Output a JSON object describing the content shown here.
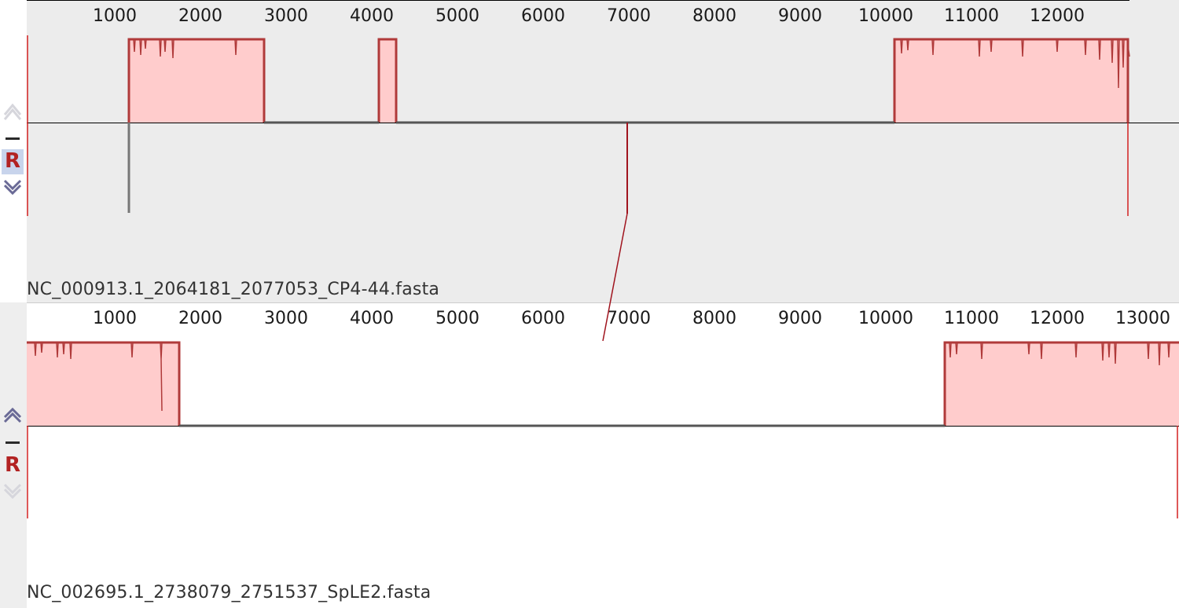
{
  "tracks": [
    {
      "name": "NC_000913.1_2064181_2077053_CP4-44.fasta",
      "ruler_ticks": [
        "1000",
        "2000",
        "3000",
        "4000",
        "5000",
        "6000",
        "7000",
        "8000",
        "9000",
        "10000",
        "11000",
        "12000"
      ],
      "controls": {
        "up": "shift-up-icon",
        "minus": "minus-icon",
        "reverse": "R",
        "down": "shift-down-icon",
        "reverse_selected": true
      },
      "background": "#ececec"
    },
    {
      "name": "NC_002695.1_2738079_2751537_SpLE2.fasta",
      "ruler_ticks": [
        "1000",
        "2000",
        "3000",
        "4000",
        "5000",
        "6000",
        "7000",
        "8000",
        "9000",
        "10000",
        "11000",
        "12000",
        "13000"
      ],
      "controls": {
        "up": "shift-up-icon",
        "minus": "minus-icon",
        "reverse": "R",
        "down": "shift-down-icon",
        "reverse_selected": false
      },
      "background": "#ffffff"
    }
  ],
  "colors": {
    "block_fill": "#ffcccc",
    "block_outline": "#b03a3a",
    "connector": "#a0141e",
    "baseline": "#555555",
    "reverse_letter": "#b22222",
    "reverse_highlight": "#c8d4ec",
    "arrow_active": "#6a6a96",
    "arrow_inactive": "#c0c0c8"
  }
}
